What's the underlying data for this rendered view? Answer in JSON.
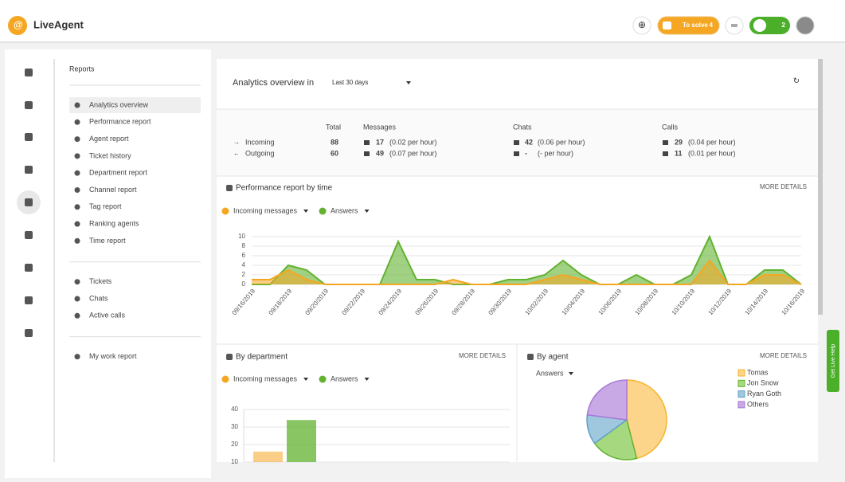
{
  "header": {
    "logo": "LiveAgent",
    "to_solve": "To solve",
    "to_solve_count": 4,
    "calls_count": 2
  },
  "sidebar": {
    "title": "Reports",
    "groups": [
      [
        "Analytics overview",
        "Performance report",
        "Agent report",
        "Ticket history",
        "Department report",
        "Channel report",
        "Tag report",
        "Ranking agents",
        "Time report"
      ],
      [
        "Tickets",
        "Chats",
        "Active calls"
      ],
      [
        "My work report"
      ]
    ]
  },
  "overview": {
    "label": "Analytics overview in",
    "period": "Last 30 days",
    "table": {
      "headers": [
        "Total",
        "Messages",
        "Chats",
        "Calls"
      ],
      "rows": [
        [
          "Incoming",
          88,
          17,
          "(0.02 per hour)",
          42,
          "(0.06 per hour)",
          29,
          "(0.04 per hour)"
        ],
        [
          "Outgoing",
          60,
          49,
          "(0.07 per hour)",
          "-",
          "(- per hour)",
          11,
          "(0.01 per hour)"
        ]
      ]
    }
  },
  "help_tab": "Get Live Help",
  "chart_data": [
    {
      "type": "area",
      "title": "Performance report by time",
      "link": "MORE DETAILS",
      "categories": [
        "09/16/2019",
        null,
        "09/18/2019",
        null,
        "09/20/2019",
        null,
        "09/22/2019",
        null,
        "09/24/2019",
        null,
        "09/26/2019",
        null,
        "09/28/2019",
        null,
        "09/30/2019",
        null,
        "10/02/2019",
        null,
        "10/04/2019",
        null,
        "10/06/2019",
        null,
        "10/08/2019",
        null,
        "10/10/2019",
        null,
        "10/12/2019",
        null,
        "10/14/2019",
        null,
        "10/16/2019"
      ],
      "series": [
        {
          "name": "Incoming messages",
          "color": "#f5a623",
          "values": [
            1,
            1,
            3,
            1,
            0,
            0,
            0,
            0,
            0,
            0,
            0,
            1,
            0,
            0,
            0,
            0,
            1,
            2,
            1,
            0,
            0,
            0,
            0,
            0,
            0,
            5,
            0,
            0,
            2,
            2,
            0
          ]
        },
        {
          "name": "Answers",
          "color": "#62b22f",
          "values": [
            0,
            0,
            4,
            3,
            0,
            0,
            0,
            0,
            9,
            1,
            1,
            0,
            0,
            0,
            1,
            1,
            2,
            5,
            2,
            0,
            0,
            2,
            0,
            0,
            2,
            10,
            0,
            0,
            3,
            3,
            0
          ]
        }
      ],
      "ylim": [
        0,
        10
      ],
      "yticks": [
        0,
        2,
        4,
        6,
        8,
        10
      ],
      "grid": true
    },
    {
      "type": "bar",
      "title": "By department",
      "link": "MORE DETAILS",
      "categories": [
        null
      ],
      "series": [
        {
          "name": "Incoming messages",
          "color": "#f5a623",
          "values": [
            16
          ]
        },
        {
          "name": "Answers",
          "color": "#62b22f",
          "values": [
            34
          ]
        }
      ],
      "ylim": [
        0,
        40
      ],
      "yticks": [
        10,
        20,
        30,
        40
      ],
      "grid": true
    },
    {
      "type": "pie",
      "title": "By agent",
      "link": "MORE DETAILS",
      "selector": "Answers",
      "categories": [
        "Tomas",
        "Jon Snow",
        "Ryan Goth",
        "Others"
      ],
      "values": [
        46,
        19,
        12,
        23
      ],
      "colors": [
        "#fdd58a",
        "#a6d97f",
        "#9fc7de",
        "#c9a8e6"
      ],
      "edge_colors": [
        "#f5b42c",
        "#62b22f",
        "#5fa0c8",
        "#a77ad6"
      ]
    }
  ]
}
